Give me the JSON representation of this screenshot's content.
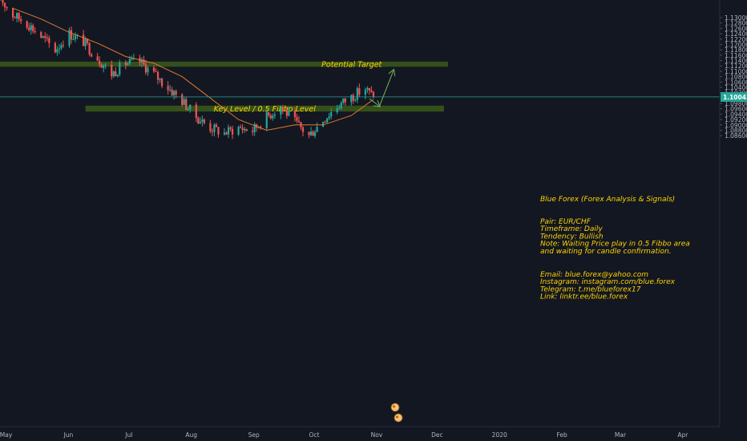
{
  "chart_data": {
    "type": "candlestick",
    "pair": "EUR/CHF",
    "timeframe": "Daily",
    "x_tick_labels": [
      "May",
      "Jun",
      "Jul",
      "Aug",
      "Sep",
      "Oct",
      "Nov",
      "Dec",
      "2020",
      "Feb",
      "Mar",
      "Apr"
    ],
    "y_ticks": [
      "1.13000",
      "1.12800",
      "1.12600",
      "1.12400",
      "1.12200",
      "1.12000",
      "1.11800",
      "1.11600",
      "1.11400",
      "1.11200",
      "1.11000",
      "1.10800",
      "1.10600",
      "1.10400",
      "1.10200",
      "1.09800",
      "1.09600",
      "1.09400",
      "1.09200",
      "1.09000",
      "1.08800",
      "1.08600"
    ],
    "ylim": [
      1.0847,
      1.1315
    ],
    "current_price": "1.10043",
    "current_price_value": 1.10043,
    "colors": {
      "background": "#131722",
      "bull": "#26a69a",
      "bear": "#ef5350",
      "moving_average": "#e0782d",
      "zone_fill": "#3b5a1a",
      "zone_text": "#ffd400",
      "arrow": "#6aa84f",
      "price_line": "#26a69a"
    },
    "zones": [
      {
        "label": "Potential Target",
        "y_top": 1.1136,
        "y_bottom": 1.1117,
        "x_start_date": "2019-04-29",
        "x_end_date": "2019-12-08"
      },
      {
        "label": "Key Level / 0.5 Fibbo Level",
        "y_top": 1.0972,
        "y_bottom": 1.095,
        "x_start_date": "2019-06-11",
        "x_end_date": "2019-12-06"
      }
    ],
    "arrows": [
      {
        "from_date": "2019-10-30",
        "from_y": 1.0998,
        "to_date": "2019-11-04",
        "to_y": 1.097
      },
      {
        "from_date": "2019-11-04",
        "from_y": 1.097,
        "to_date": "2019-11-11",
        "to_y": 1.1104
      }
    ],
    "price_series": [
      {
        "date": "2019-04-29",
        "close": 1.138
      },
      {
        "date": "2019-05-06",
        "close": 1.131
      },
      {
        "date": "2019-05-13",
        "close": 1.128
      },
      {
        "date": "2019-05-20",
        "close": 1.123
      },
      {
        "date": "2019-05-27",
        "close": 1.118
      },
      {
        "date": "2019-06-03",
        "close": 1.124
      },
      {
        "date": "2019-06-10",
        "close": 1.121
      },
      {
        "date": "2019-06-17",
        "close": 1.115
      },
      {
        "date": "2019-06-24",
        "close": 1.109
      },
      {
        "date": "2019-07-01",
        "close": 1.113
      },
      {
        "date": "2019-07-08",
        "close": 1.1135
      },
      {
        "date": "2019-07-15",
        "close": 1.109
      },
      {
        "date": "2019-07-22",
        "close": 1.104
      },
      {
        "date": "2019-07-29",
        "close": 1.099
      },
      {
        "date": "2019-08-05",
        "close": 1.093
      },
      {
        "date": "2019-08-12",
        "close": 1.089
      },
      {
        "date": "2019-08-19",
        "close": 1.087
      },
      {
        "date": "2019-08-26",
        "close": 1.089
      },
      {
        "date": "2019-09-02",
        "close": 1.088
      },
      {
        "date": "2019-09-09",
        "close": 1.093
      },
      {
        "date": "2019-09-16",
        "close": 1.097
      },
      {
        "date": "2019-09-23",
        "close": 1.091
      },
      {
        "date": "2019-09-30",
        "close": 1.086
      },
      {
        "date": "2019-10-07",
        "close": 1.092
      },
      {
        "date": "2019-10-14",
        "close": 1.097
      },
      {
        "date": "2019-10-21",
        "close": 1.1005
      },
      {
        "date": "2019-10-28",
        "close": 1.1035
      },
      {
        "date": "2019-11-01",
        "close": 1.10043
      }
    ],
    "moving_average": [
      {
        "date": "2019-05-06",
        "value": 1.1335
      },
      {
        "date": "2019-05-20",
        "value": 1.1295
      },
      {
        "date": "2019-06-03",
        "value": 1.1245
      },
      {
        "date": "2019-06-17",
        "value": 1.1205
      },
      {
        "date": "2019-07-01",
        "value": 1.1155
      },
      {
        "date": "2019-07-15",
        "value": 1.113
      },
      {
        "date": "2019-07-29",
        "value": 1.108
      },
      {
        "date": "2019-08-12",
        "value": 1.1
      },
      {
        "date": "2019-08-26",
        "value": 1.092
      },
      {
        "date": "2019-09-09",
        "value": 1.088
      },
      {
        "date": "2019-09-23",
        "value": 1.09
      },
      {
        "date": "2019-10-07",
        "value": 1.09
      },
      {
        "date": "2019-10-21",
        "value": 1.0935
      },
      {
        "date": "2019-11-01",
        "value": 1.0995
      }
    ]
  },
  "annotation": {
    "title": "Blue Forex (Forex Analysis & Signals)",
    "lines": [
      "Pair: EUR/CHF",
      "Timeframe: Daily",
      "Tendency: Bullish",
      "Note: Waiting Price play in 0.5 Fibbo area",
      "and waiting for candle confirmation."
    ],
    "contacts": [
      "Email: blue.forex@yahoo.com",
      "Instagram: instagram.com/blue.forex",
      "Telegram: t.me/blueforex17",
      "Link: linktr.ee/blue.forex"
    ]
  },
  "icons": {
    "event_markers": [
      "economic-event-icon",
      "economic-event-icon"
    ]
  }
}
